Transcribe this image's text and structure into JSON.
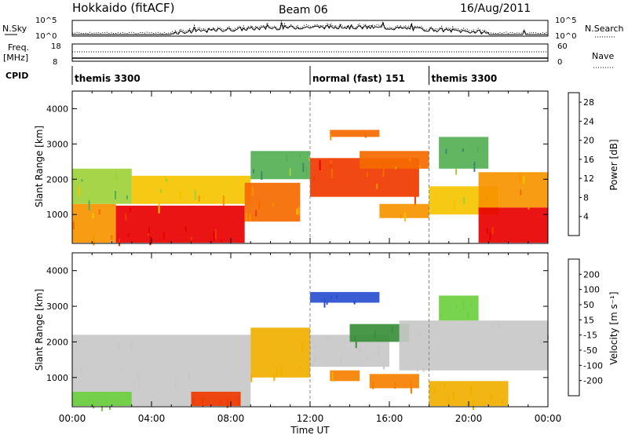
{
  "header": {
    "station": "Hokkaido (fitACF)",
    "beam": "Beam 06",
    "date": "16/Aug/2011"
  },
  "top_panels": {
    "nsky_label": "N.Sky",
    "nsearch_label": "N.Search",
    "nsky_ticks": [
      "10^5",
      "10^0"
    ],
    "nsearch_ticks": [
      "10^5",
      "10^0"
    ],
    "freq_label_1": "Freq.",
    "freq_label_2": "[MHz]",
    "freq_ticks": [
      "18",
      "8"
    ],
    "nave_label": "Nave",
    "nave_ticks": [
      "60",
      "0"
    ],
    "cpid_label": "CPID",
    "cpid_segments": [
      {
        "label": "themis 3300",
        "start_hour": 0
      },
      {
        "label": "normal (fast) 151",
        "start_hour": 12
      },
      {
        "label": "themis 3300",
        "start_hour": 18
      }
    ]
  },
  "chart_data": [
    {
      "type": "heatmap",
      "quantity": "Power",
      "ylabel": "Slant Range [km]",
      "xlabel": "Time UT",
      "xlim_hours": [
        0,
        24
      ],
      "x_tick_labels": [
        "00:00",
        "04:00",
        "08:00",
        "12:00",
        "16:00",
        "20:00",
        "00:00"
      ],
      "ylim": [
        180,
        4500
      ],
      "y_ticks": [
        1000,
        2000,
        3000,
        4000
      ],
      "colorbar": {
        "label": "Power [dB]",
        "ticks": [
          4,
          8,
          12,
          16,
          20,
          24,
          28
        ],
        "range": [
          0,
          30
        ],
        "colors": [
          "#0014e6",
          "#2b55b5",
          "#3c8a6a",
          "#55b055",
          "#9fd13a",
          "#f5c400",
          "#f79400",
          "#f56a00",
          "#f03a00",
          "#e80000"
        ]
      },
      "regions": [
        {
          "t0": 0.0,
          "t1": 2.2,
          "r0": 200,
          "r1": 1300,
          "value": 20
        },
        {
          "t0": 2.2,
          "t1": 8.7,
          "r0": 200,
          "r1": 1250,
          "value": 29
        },
        {
          "t0": 0.0,
          "t1": 3.0,
          "r0": 1300,
          "r1": 2300,
          "value": 12
        },
        {
          "t0": 3.0,
          "t1": 9.0,
          "r0": 1300,
          "r1": 2100,
          "value": 17
        },
        {
          "t0": 8.7,
          "t1": 11.5,
          "r0": 800,
          "r1": 1900,
          "value": 21
        },
        {
          "t0": 9.0,
          "t1": 12.0,
          "r0": 2000,
          "r1": 2800,
          "value": 11
        },
        {
          "t0": 12.0,
          "t1": 17.5,
          "r0": 1500,
          "r1": 2600,
          "value": 24
        },
        {
          "t0": 13.0,
          "t1": 15.5,
          "r0": 3200,
          "r1": 3400,
          "value": 21
        },
        {
          "t0": 14.5,
          "t1": 18.0,
          "r0": 2300,
          "r1": 2800,
          "value": 22
        },
        {
          "t0": 15.5,
          "t1": 18.0,
          "r0": 900,
          "r1": 1300,
          "value": 20
        },
        {
          "t0": 18.0,
          "t1": 21.5,
          "r0": 1000,
          "r1": 1800,
          "value": 16
        },
        {
          "t0": 18.5,
          "t1": 21.0,
          "r0": 2300,
          "r1": 3200,
          "value": 9
        },
        {
          "t0": 20.5,
          "t1": 24.0,
          "r0": 200,
          "r1": 1200,
          "value": 28
        },
        {
          "t0": 20.5,
          "t1": 24.0,
          "r0": 1200,
          "r1": 2200,
          "value": 20
        }
      ]
    },
    {
      "type": "heatmap",
      "quantity": "Velocity",
      "ylabel": "Slant Range [km]",
      "xlabel": "Time UT",
      "xlim_hours": [
        0,
        24
      ],
      "x_tick_labels": [
        "00:00",
        "04:00",
        "08:00",
        "12:00",
        "16:00",
        "20:00",
        "00:00"
      ],
      "ylim": [
        180,
        4500
      ],
      "y_ticks": [
        1000,
        2000,
        3000,
        4000
      ],
      "colorbar": {
        "label": "Velocity [m s⁻¹]",
        "ticks": [
          200,
          100,
          50,
          15,
          -15,
          -50,
          -100,
          -200
        ],
        "colors": [
          "#1a2ea8",
          "#2a4fd0",
          "#3a8f3a",
          "#6cd040",
          "#c8c8c8",
          "#f0b000",
          "#f58000",
          "#f03a00",
          "#e00000"
        ]
      },
      "regions": [
        {
          "t0": 0.0,
          "t1": 9.0,
          "r0": 200,
          "r1": 2200,
          "value": 0
        },
        {
          "t0": 0.0,
          "t1": 3.0,
          "r0": 200,
          "r1": 600,
          "value": 40
        },
        {
          "t0": 6.0,
          "t1": 8.5,
          "r0": 200,
          "r1": 600,
          "value": -120
        },
        {
          "t0": 9.0,
          "t1": 12.0,
          "r0": 1000,
          "r1": 2400,
          "value": -40
        },
        {
          "t0": 12.0,
          "t1": 15.5,
          "r0": 3100,
          "r1": 3400,
          "value": 180
        },
        {
          "t0": 12.0,
          "t1": 16.0,
          "r0": 1300,
          "r1": 2200,
          "value": 0
        },
        {
          "t0": 14.0,
          "t1": 17.0,
          "r0": 2000,
          "r1": 2500,
          "value": 60
        },
        {
          "t0": 13.0,
          "t1": 14.5,
          "r0": 900,
          "r1": 1200,
          "value": -50
        },
        {
          "t0": 15.0,
          "t1": 17.5,
          "r0": 700,
          "r1": 1100,
          "value": -60
        },
        {
          "t0": 16.5,
          "t1": 24.0,
          "r0": 1200,
          "r1": 2600,
          "value": 0
        },
        {
          "t0": 18.5,
          "t1": 20.5,
          "r0": 2600,
          "r1": 3300,
          "value": 40
        },
        {
          "t0": 18.0,
          "t1": 22.0,
          "r0": 200,
          "r1": 900,
          "value": -30
        }
      ]
    }
  ]
}
